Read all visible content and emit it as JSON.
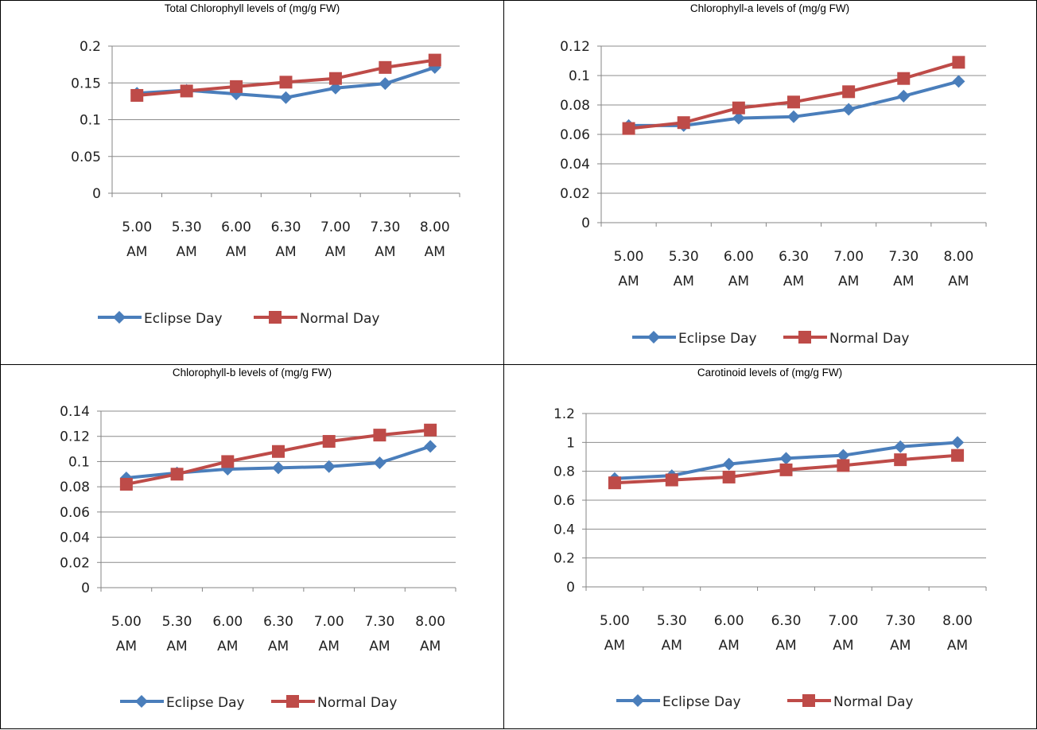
{
  "chart_data": [
    {
      "type": "line",
      "title": "Total Chlorophyll levels of (mg/g FW)",
      "categories": [
        "5.00 AM",
        "5.30 AM",
        "6.00 AM",
        "6.30 AM",
        "7.00 AM",
        "7.30 AM",
        "8.00 AM"
      ],
      "series": [
        {
          "name": "Eclipse Day",
          "values": [
            0.136,
            0.14,
            0.135,
            0.13,
            0.143,
            0.149,
            0.171
          ]
        },
        {
          "name": "Normal Day",
          "values": [
            0.133,
            0.139,
            0.145,
            0.151,
            0.156,
            0.171,
            0.181
          ]
        }
      ],
      "ylim": [
        0,
        0.2
      ],
      "yticks": [
        "0",
        "0.05",
        "0.1",
        "0.15",
        "0.2"
      ],
      "grid": true,
      "legend": "bottom"
    },
    {
      "type": "line",
      "title": "Chlorophyll-a levels of (mg/g FW)",
      "categories": [
        "5.00 AM",
        "5.30 AM",
        "6.00 AM",
        "6.30 AM",
        "7.00 AM",
        "7.30 AM",
        "8.00 AM"
      ],
      "series": [
        {
          "name": "Eclipse Day",
          "values": [
            0.066,
            0.066,
            0.071,
            0.072,
            0.077,
            0.086,
            0.096
          ]
        },
        {
          "name": "Normal Day",
          "values": [
            0.064,
            0.068,
            0.078,
            0.082,
            0.089,
            0.098,
            0.109
          ]
        }
      ],
      "ylim": [
        0,
        0.12
      ],
      "yticks": [
        "0",
        "0.02",
        "0.04",
        "0.06",
        "0.08",
        "0.1",
        "0.12"
      ],
      "grid": true,
      "legend": "bottom"
    },
    {
      "type": "line",
      "title": "Chlorophyll-b levels of (mg/g FW)",
      "categories": [
        "5.00 AM",
        "5.30 AM",
        "6.00 AM",
        "6.30 AM",
        "7.00 AM",
        "7.30 AM",
        "8.00 AM"
      ],
      "series": [
        {
          "name": "Eclipse Day",
          "values": [
            0.087,
            0.091,
            0.094,
            0.095,
            0.096,
            0.099,
            0.112
          ]
        },
        {
          "name": "Normal Day",
          "values": [
            0.082,
            0.09,
            0.1,
            0.108,
            0.116,
            0.121,
            0.125
          ]
        }
      ],
      "ylim": [
        0,
        0.14
      ],
      "yticks": [
        "0",
        "0.02",
        "0.04",
        "0.06",
        "0.08",
        "0.1",
        "0.12",
        "0.14"
      ],
      "grid": true,
      "legend": "bottom"
    },
    {
      "type": "line",
      "title": "Carotinoid levels of (mg/g FW)",
      "categories": [
        "5.00 AM",
        "5.30 AM",
        "6.00 AM",
        "6.30 AM",
        "7.00 AM",
        "7.30 AM",
        "8.00 AM"
      ],
      "series": [
        {
          "name": "Eclipse Day",
          "values": [
            0.75,
            0.77,
            0.85,
            0.89,
            0.91,
            0.97,
            1.0
          ]
        },
        {
          "name": "Normal Day",
          "values": [
            0.72,
            0.74,
            0.76,
            0.81,
            0.84,
            0.88,
            0.91
          ]
        }
      ],
      "ylim": [
        0,
        1.2
      ],
      "yticks": [
        "0",
        "0.2",
        "0.4",
        "0.6",
        "0.8",
        "1",
        "1.2"
      ],
      "grid": true,
      "legend": "bottom"
    }
  ],
  "colors": {
    "Eclipse Day": "#4a7ebb",
    "Normal Day": "#be4b48",
    "gridline": "#8c8c8c",
    "axis": "#868686"
  },
  "markers": {
    "Eclipse Day": "diamond",
    "Normal Day": "square"
  }
}
